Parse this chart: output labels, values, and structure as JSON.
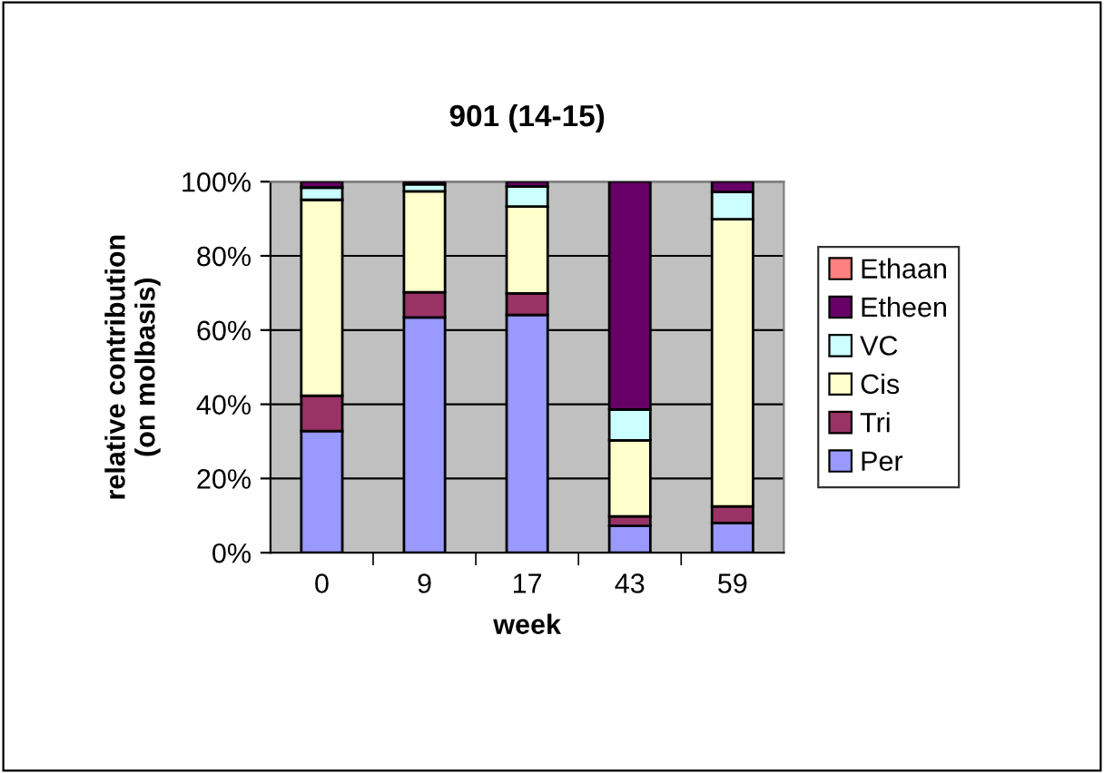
{
  "chart_data": {
    "type": "bar",
    "stacked": true,
    "title": "901 (14-15)",
    "xlabel": "week",
    "ylabel": "relative contribution\n(on molbasis)",
    "categories": [
      "0",
      "9",
      "17",
      "43",
      "59"
    ],
    "series": [
      {
        "name": "Per",
        "color": "#9999ff",
        "values": [
          32.8,
          63.4,
          64.1,
          7.2,
          8.0
        ]
      },
      {
        "name": "Tri",
        "color": "#993366",
        "values": [
          9.5,
          6.8,
          5.8,
          2.6,
          4.5
        ]
      },
      {
        "name": "Cis",
        "color": "#ffffcc",
        "values": [
          52.8,
          27.2,
          23.4,
          20.5,
          77.4
        ]
      },
      {
        "name": "VC",
        "color": "#ccffff",
        "values": [
          3.3,
          1.9,
          5.4,
          8.3,
          7.3
        ]
      },
      {
        "name": "Etheen",
        "color": "#660066",
        "values": [
          1.6,
          0.7,
          1.3,
          61.4,
          2.8
        ]
      },
      {
        "name": "Ethaan",
        "color": "#ff8080",
        "values": [
          null,
          null,
          null,
          null,
          null
        ]
      }
    ],
    "ylim": [
      0,
      100
    ],
    "yticks": [
      {
        "value": 0,
        "label": "0%"
      },
      {
        "value": 20,
        "label": "20%"
      },
      {
        "value": 40,
        "label": "40%"
      },
      {
        "value": 60,
        "label": "60%"
      },
      {
        "value": 80,
        "label": "80%"
      },
      {
        "value": 100,
        "label": "100%"
      }
    ],
    "grid": "y",
    "legend": "right"
  }
}
